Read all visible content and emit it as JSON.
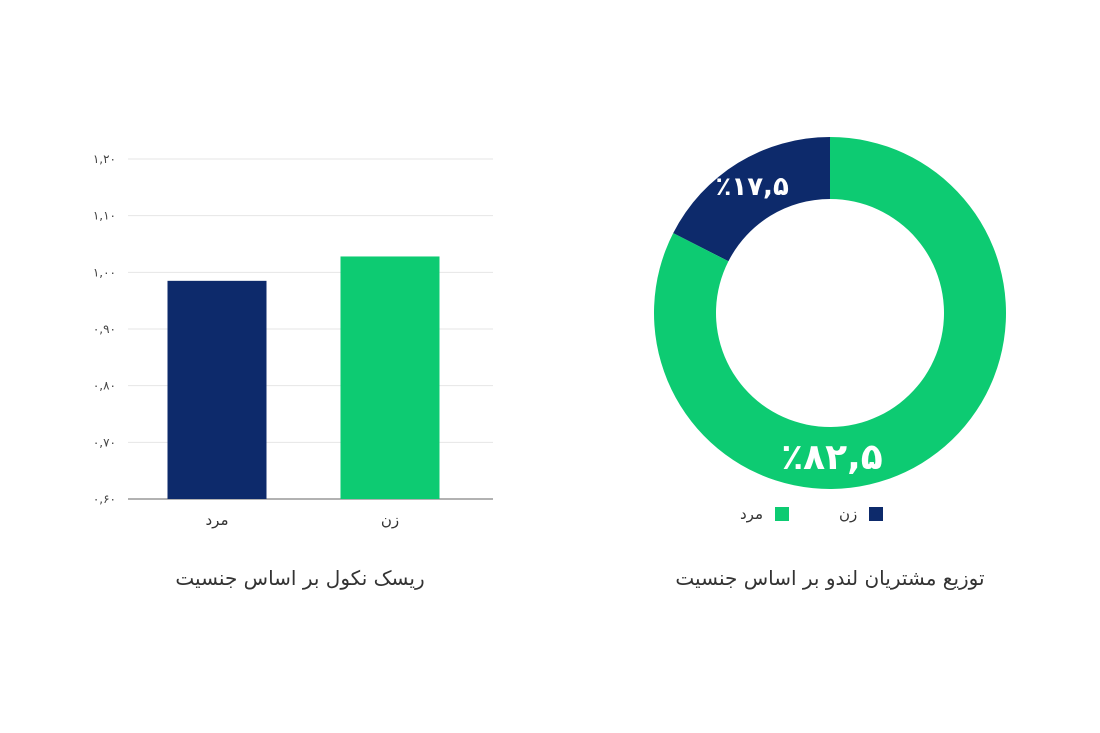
{
  "colors": {
    "male": "#0d2a6b",
    "female": "#0dcb72",
    "grid": "#e6e6e6",
    "axis": "#999999"
  },
  "chart_data": [
    {
      "type": "bar",
      "title": "ریسک نکول بر اساس جنسیت",
      "categories": [
        "مرد",
        "زن"
      ],
      "values": [
        0.985,
        1.028
      ],
      "ylim": [
        0.6,
        1.2
      ],
      "yticks": [
        0.6,
        0.7,
        0.8,
        0.9,
        1.0,
        1.1,
        1.2
      ],
      "ytick_labels": [
        "۰,۶۰",
        "۰,۷۰",
        "۰,۸۰",
        "۰,۹۰",
        "۱,۰۰",
        "۱,۱۰",
        "۱,۲۰"
      ],
      "grid": true,
      "xlabel": "",
      "ylabel": ""
    },
    {
      "type": "pie",
      "title": "توزیع مشتریان لندو بر اساس جنسیت",
      "donut": true,
      "labels": [
        "زن",
        "مرد"
      ],
      "values": [
        17.5,
        82.5
      ],
      "value_labels": [
        "٪۱۷,۵",
        "٪۸۲,۵"
      ],
      "legend_placement": "bottom"
    }
  ]
}
